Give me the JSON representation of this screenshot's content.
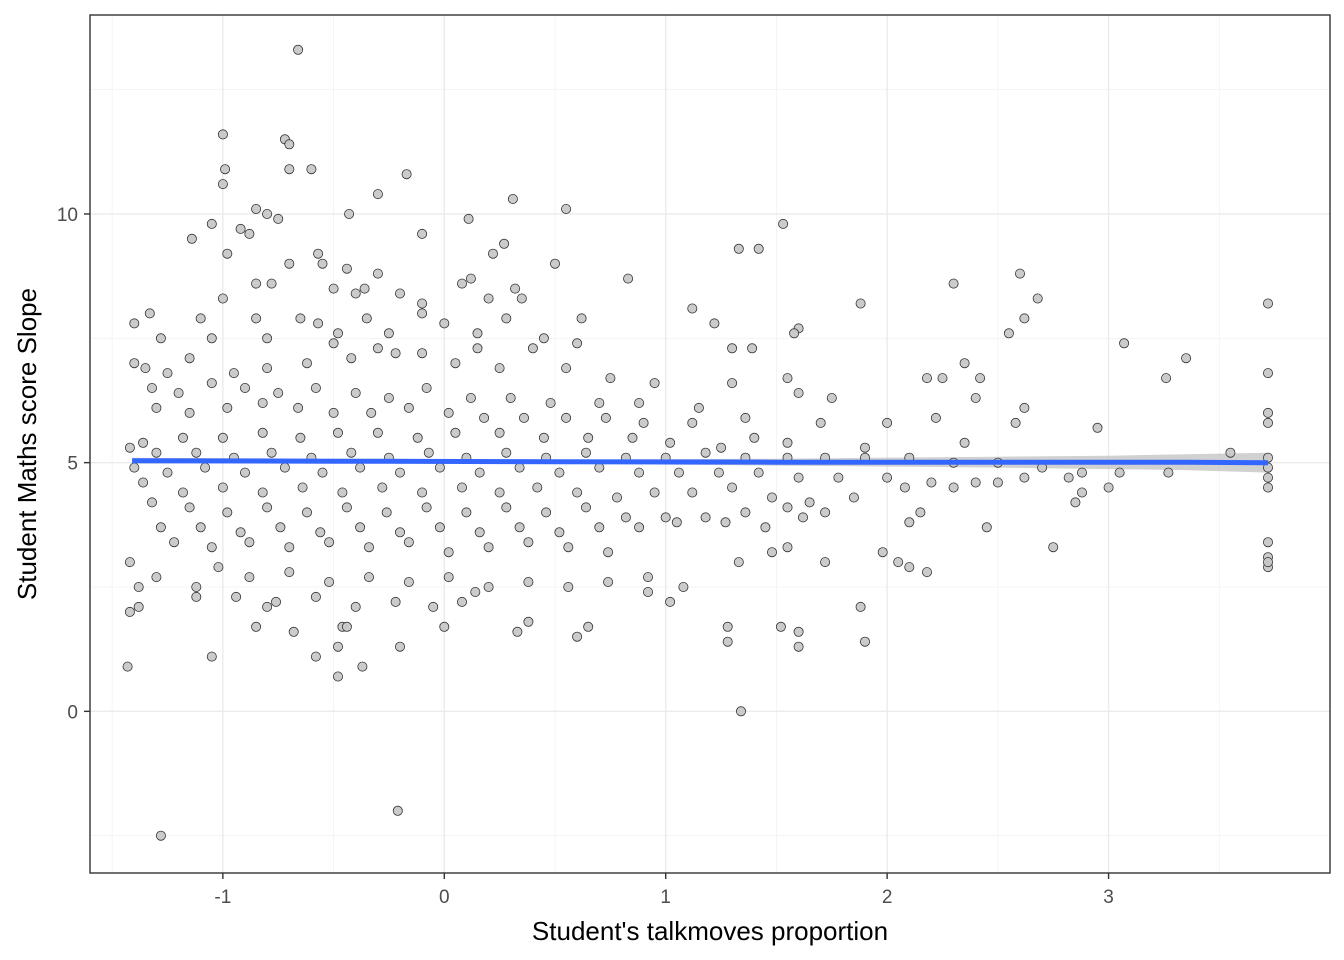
{
  "chart_data": {
    "type": "scatter",
    "xlabel": "Student's talkmoves proportion",
    "ylabel": "Student Maths score Slope",
    "xlim": [
      -1.6,
      4.0
    ],
    "ylim": [
      -3.25,
      14.0
    ],
    "x_ticks": [
      -1,
      0,
      1,
      2,
      3
    ],
    "x_tick_labels": [
      "-1",
      "0",
      "1",
      "2",
      "3"
    ],
    "y_ticks": [
      0,
      5,
      10
    ],
    "y_tick_labels": [
      "0",
      "5",
      "10"
    ],
    "grid": true,
    "colors": {
      "points": "#c8c8c8",
      "point_outline": "#333333",
      "smooth_line": "#3366ff",
      "ribbon": "#bdbdbd"
    },
    "smooth_line": {
      "x": [
        -1.41,
        -0.5,
        0.5,
        1.5,
        2.5,
        3.0,
        3.35,
        3.72
      ],
      "y": [
        5.04,
        5.03,
        5.02,
        5.01,
        5.01,
        5.01,
        5.01,
        5.0
      ],
      "se_lower": [
        4.98,
        4.99,
        4.98,
        4.94,
        4.9,
        4.87,
        4.85,
        4.8
      ],
      "se_upper": [
        5.1,
        5.08,
        5.06,
        5.08,
        5.12,
        5.14,
        5.17,
        5.2
      ]
    },
    "points": [
      [
        -0.66,
        13.3
      ],
      [
        -1.0,
        11.6
      ],
      [
        -0.72,
        11.5
      ],
      [
        -0.7,
        11.4
      ],
      [
        -0.6,
        10.9
      ],
      [
        -0.7,
        10.9
      ],
      [
        -0.99,
        10.9
      ],
      [
        -1.0,
        10.6
      ],
      [
        -0.3,
        10.4
      ],
      [
        -0.17,
        10.8
      ],
      [
        0.31,
        10.3
      ],
      [
        0.55,
        10.1
      ],
      [
        -0.85,
        10.1
      ],
      [
        -0.8,
        10.0
      ],
      [
        -0.75,
        9.9
      ],
      [
        -0.43,
        10.0
      ],
      [
        0.11,
        9.9
      ],
      [
        -1.05,
        9.8
      ],
      [
        -0.92,
        9.7
      ],
      [
        -0.88,
        9.6
      ],
      [
        -1.14,
        9.5
      ],
      [
        -0.57,
        9.2
      ],
      [
        1.53,
        9.8
      ],
      [
        1.33,
        9.3
      ],
      [
        1.42,
        9.3
      ],
      [
        0.27,
        9.4
      ],
      [
        0.22,
        9.2
      ],
      [
        -0.1,
        9.6
      ],
      [
        -0.98,
        9.2
      ],
      [
        -0.7,
        9.0
      ],
      [
        -0.55,
        9.0
      ],
      [
        -0.44,
        8.9
      ],
      [
        -0.3,
        8.8
      ],
      [
        0.5,
        9.0
      ],
      [
        0.83,
        8.7
      ],
      [
        -0.85,
        8.6
      ],
      [
        -0.78,
        8.6
      ],
      [
        0.08,
        8.6
      ],
      [
        0.12,
        8.7
      ],
      [
        -0.5,
        8.5
      ],
      [
        -0.4,
        8.4
      ],
      [
        -0.36,
        8.5
      ],
      [
        -0.2,
        8.4
      ],
      [
        -0.1,
        8.2
      ],
      [
        0.2,
        8.3
      ],
      [
        0.32,
        8.5
      ],
      [
        0.35,
        8.3
      ],
      [
        2.3,
        8.6
      ],
      [
        2.6,
        8.8
      ],
      [
        2.68,
        8.3
      ],
      [
        1.88,
        8.2
      ],
      [
        3.72,
        8.2
      ],
      [
        -1.0,
        8.3
      ],
      [
        -1.1,
        7.9
      ],
      [
        -1.33,
        8.0
      ],
      [
        -1.4,
        7.8
      ],
      [
        -0.85,
        7.9
      ],
      [
        -0.65,
        7.9
      ],
      [
        -0.57,
        7.8
      ],
      [
        -0.48,
        7.6
      ],
      [
        -0.35,
        7.9
      ],
      [
        -0.25,
        7.6
      ],
      [
        -0.1,
        8.0
      ],
      [
        0.0,
        7.8
      ],
      [
        0.15,
        7.6
      ],
      [
        0.28,
        7.9
      ],
      [
        0.45,
        7.5
      ],
      [
        0.62,
        7.9
      ],
      [
        1.12,
        8.1
      ],
      [
        1.22,
        7.8
      ],
      [
        1.6,
        7.7
      ],
      [
        1.58,
        7.6
      ],
      [
        2.55,
        7.6
      ],
      [
        2.62,
        7.9
      ],
      [
        3.07,
        7.4
      ],
      [
        3.35,
        7.1
      ],
      [
        1.3,
        7.3
      ],
      [
        1.39,
        7.3
      ],
      [
        0.6,
        7.4
      ],
      [
        0.4,
        7.3
      ],
      [
        0.15,
        7.3
      ],
      [
        -0.1,
        7.2
      ],
      [
        -0.3,
        7.3
      ],
      [
        -0.5,
        7.4
      ],
      [
        -0.8,
        7.5
      ],
      [
        -1.05,
        7.5
      ],
      [
        -1.28,
        7.5
      ],
      [
        -1.15,
        7.1
      ],
      [
        -1.4,
        7.0
      ],
      [
        -1.35,
        6.9
      ],
      [
        -1.25,
        6.8
      ],
      [
        -0.95,
        6.8
      ],
      [
        -0.8,
        6.9
      ],
      [
        -0.62,
        7.0
      ],
      [
        -0.42,
        7.1
      ],
      [
        -0.22,
        7.2
      ],
      [
        0.05,
        7.0
      ],
      [
        0.25,
        6.9
      ],
      [
        0.55,
        6.9
      ],
      [
        0.75,
        6.7
      ],
      [
        0.95,
        6.6
      ],
      [
        1.3,
        6.6
      ],
      [
        1.55,
        6.7
      ],
      [
        2.18,
        6.7
      ],
      [
        2.25,
        6.7
      ],
      [
        2.35,
        7.0
      ],
      [
        2.42,
        6.7
      ],
      [
        2.22,
        5.9
      ],
      [
        2.62,
        6.1
      ],
      [
        3.72,
        6.8
      ],
      [
        3.26,
        6.7
      ],
      [
        1.6,
        6.4
      ],
      [
        1.75,
        6.3
      ],
      [
        2.4,
        6.3
      ],
      [
        -1.32,
        6.5
      ],
      [
        -1.2,
        6.4
      ],
      [
        -1.05,
        6.6
      ],
      [
        -0.9,
        6.5
      ],
      [
        -0.75,
        6.4
      ],
      [
        -0.58,
        6.5
      ],
      [
        -0.4,
        6.4
      ],
      [
        -0.25,
        6.3
      ],
      [
        -0.08,
        6.5
      ],
      [
        0.12,
        6.3
      ],
      [
        0.3,
        6.3
      ],
      [
        0.48,
        6.2
      ],
      [
        0.7,
        6.2
      ],
      [
        0.88,
        6.2
      ],
      [
        1.15,
        6.1
      ],
      [
        1.36,
        5.9
      ],
      [
        -1.3,
        6.1
      ],
      [
        -1.15,
        6.0
      ],
      [
        -0.98,
        6.1
      ],
      [
        -0.82,
        6.2
      ],
      [
        -0.66,
        6.1
      ],
      [
        -0.5,
        6.0
      ],
      [
        -0.33,
        6.0
      ],
      [
        -0.16,
        6.1
      ],
      [
        0.02,
        6.0
      ],
      [
        0.18,
        5.9
      ],
      [
        0.36,
        5.9
      ],
      [
        0.55,
        5.9
      ],
      [
        0.73,
        5.9
      ],
      [
        0.9,
        5.8
      ],
      [
        1.12,
        5.8
      ],
      [
        1.7,
        5.8
      ],
      [
        2.0,
        5.8
      ],
      [
        2.58,
        5.8
      ],
      [
        3.72,
        6.0
      ],
      [
        3.72,
        5.8
      ],
      [
        2.95,
        5.7
      ],
      [
        2.35,
        5.4
      ],
      [
        1.9,
        5.3
      ],
      [
        1.55,
        5.4
      ],
      [
        1.4,
        5.5
      ],
      [
        1.25,
        5.3
      ],
      [
        1.02,
        5.4
      ],
      [
        0.85,
        5.5
      ],
      [
        0.65,
        5.5
      ],
      [
        0.45,
        5.5
      ],
      [
        0.25,
        5.6
      ],
      [
        0.05,
        5.6
      ],
      [
        -0.12,
        5.5
      ],
      [
        -0.3,
        5.6
      ],
      [
        -0.48,
        5.6
      ],
      [
        -0.65,
        5.5
      ],
      [
        -0.82,
        5.6
      ],
      [
        -1.0,
        5.5
      ],
      [
        -1.18,
        5.5
      ],
      [
        -1.36,
        5.4
      ],
      [
        -1.42,
        5.3
      ],
      [
        -1.3,
        5.2
      ],
      [
        -1.12,
        5.2
      ],
      [
        -0.95,
        5.1
      ],
      [
        -0.78,
        5.2
      ],
      [
        -0.6,
        5.1
      ],
      [
        -0.42,
        5.2
      ],
      [
        -0.25,
        5.1
      ],
      [
        -0.07,
        5.2
      ],
      [
        0.1,
        5.1
      ],
      [
        0.28,
        5.2
      ],
      [
        0.46,
        5.1
      ],
      [
        0.64,
        5.2
      ],
      [
        0.82,
        5.1
      ],
      [
        1.0,
        5.1
      ],
      [
        1.18,
        5.2
      ],
      [
        1.36,
        5.1
      ],
      [
        1.55,
        5.1
      ],
      [
        1.72,
        5.1
      ],
      [
        1.9,
        5.1
      ],
      [
        2.1,
        5.1
      ],
      [
        2.3,
        5.0
      ],
      [
        2.5,
        5.0
      ],
      [
        2.7,
        4.9
      ],
      [
        2.88,
        4.8
      ],
      [
        3.05,
        4.8
      ],
      [
        3.27,
        4.8
      ],
      [
        3.55,
        5.2
      ],
      [
        3.72,
        5.1
      ],
      [
        3.72,
        4.9
      ],
      [
        -1.4,
        4.9
      ],
      [
        -1.25,
        4.8
      ],
      [
        -1.08,
        4.9
      ],
      [
        -0.9,
        4.8
      ],
      [
        -0.72,
        4.9
      ],
      [
        -0.55,
        4.8
      ],
      [
        -0.38,
        4.9
      ],
      [
        -0.2,
        4.8
      ],
      [
        -0.02,
        4.9
      ],
      [
        0.16,
        4.8
      ],
      [
        0.34,
        4.9
      ],
      [
        0.52,
        4.8
      ],
      [
        0.7,
        4.9
      ],
      [
        0.88,
        4.8
      ],
      [
        1.06,
        4.8
      ],
      [
        1.24,
        4.8
      ],
      [
        1.42,
        4.8
      ],
      [
        1.6,
        4.7
      ],
      [
        1.78,
        4.7
      ],
      [
        2.0,
        4.7
      ],
      [
        2.2,
        4.6
      ],
      [
        2.4,
        4.6
      ],
      [
        2.62,
        4.7
      ],
      [
        2.82,
        4.7
      ],
      [
        3.72,
        4.7
      ],
      [
        3.72,
        4.5
      ],
      [
        3.0,
        4.5
      ],
      [
        2.88,
        4.4
      ],
      [
        2.85,
        4.2
      ],
      [
        2.5,
        4.6
      ],
      [
        2.3,
        4.5
      ],
      [
        2.08,
        4.5
      ],
      [
        1.85,
        4.3
      ],
      [
        1.65,
        4.2
      ],
      [
        1.48,
        4.3
      ],
      [
        1.3,
        4.5
      ],
      [
        1.12,
        4.4
      ],
      [
        0.95,
        4.4
      ],
      [
        0.78,
        4.3
      ],
      [
        0.6,
        4.4
      ],
      [
        0.42,
        4.5
      ],
      [
        0.25,
        4.4
      ],
      [
        0.08,
        4.5
      ],
      [
        -0.1,
        4.4
      ],
      [
        -0.28,
        4.5
      ],
      [
        -0.46,
        4.4
      ],
      [
        -0.64,
        4.5
      ],
      [
        -0.82,
        4.4
      ],
      [
        -1.0,
        4.5
      ],
      [
        -1.18,
        4.4
      ],
      [
        -1.36,
        4.6
      ],
      [
        -1.32,
        4.2
      ],
      [
        -1.15,
        4.1
      ],
      [
        -0.98,
        4.0
      ],
      [
        -0.8,
        4.1
      ],
      [
        -0.62,
        4.0
      ],
      [
        -0.44,
        4.1
      ],
      [
        -0.26,
        4.0
      ],
      [
        -0.08,
        4.1
      ],
      [
        0.1,
        4.0
      ],
      [
        0.28,
        4.1
      ],
      [
        0.46,
        4.0
      ],
      [
        0.64,
        4.1
      ],
      [
        0.82,
        3.9
      ],
      [
        1.0,
        3.9
      ],
      [
        1.18,
        3.9
      ],
      [
        1.36,
        4.0
      ],
      [
        1.55,
        4.1
      ],
      [
        1.72,
        4.0
      ],
      [
        2.15,
        4.0
      ],
      [
        2.45,
        3.7
      ],
      [
        2.1,
        3.8
      ],
      [
        1.62,
        3.9
      ],
      [
        1.45,
        3.7
      ],
      [
        1.27,
        3.8
      ],
      [
        1.05,
        3.8
      ],
      [
        0.88,
        3.7
      ],
      [
        0.7,
        3.7
      ],
      [
        0.52,
        3.6
      ],
      [
        0.34,
        3.7
      ],
      [
        0.16,
        3.6
      ],
      [
        -0.02,
        3.7
      ],
      [
        -0.2,
        3.6
      ],
      [
        -0.38,
        3.7
      ],
      [
        -0.56,
        3.6
      ],
      [
        -0.74,
        3.7
      ],
      [
        -0.92,
        3.6
      ],
      [
        -1.1,
        3.7
      ],
      [
        -1.28,
        3.7
      ],
      [
        -1.22,
        3.4
      ],
      [
        -1.05,
        3.3
      ],
      [
        -0.88,
        3.4
      ],
      [
        -0.7,
        3.3
      ],
      [
        -0.52,
        3.4
      ],
      [
        -0.34,
        3.3
      ],
      [
        -0.16,
        3.4
      ],
      [
        0.02,
        3.2
      ],
      [
        0.2,
        3.3
      ],
      [
        0.38,
        3.4
      ],
      [
        0.56,
        3.3
      ],
      [
        0.74,
        3.2
      ],
      [
        1.33,
        3.0
      ],
      [
        1.48,
        3.2
      ],
      [
        1.55,
        3.3
      ],
      [
        1.72,
        3.0
      ],
      [
        2.1,
        2.9
      ],
      [
        2.18,
        2.8
      ],
      [
        1.98,
        3.2
      ],
      [
        2.05,
        3.0
      ],
      [
        2.75,
        3.3
      ],
      [
        3.72,
        3.4
      ],
      [
        3.72,
        3.1
      ],
      [
        3.72,
        2.9
      ],
      [
        3.72,
        3.0
      ],
      [
        -1.42,
        3.0
      ],
      [
        -1.38,
        2.5
      ],
      [
        -1.3,
        2.7
      ],
      [
        -1.12,
        2.5
      ],
      [
        -1.02,
        2.9
      ],
      [
        -0.88,
        2.7
      ],
      [
        -0.7,
        2.8
      ],
      [
        -0.52,
        2.6
      ],
      [
        -0.34,
        2.7
      ],
      [
        -0.16,
        2.6
      ],
      [
        0.02,
        2.7
      ],
      [
        0.2,
        2.5
      ],
      [
        0.38,
        2.6
      ],
      [
        0.56,
        2.5
      ],
      [
        0.74,
        2.6
      ],
      [
        0.92,
        2.7
      ],
      [
        1.08,
        2.5
      ],
      [
        1.02,
        2.2
      ],
      [
        0.92,
        2.4
      ],
      [
        0.14,
        2.4
      ],
      [
        0.08,
        2.2
      ],
      [
        -0.05,
        2.1
      ],
      [
        -0.22,
        2.2
      ],
      [
        -0.4,
        2.1
      ],
      [
        -0.58,
        2.3
      ],
      [
        -0.76,
        2.2
      ],
      [
        -0.94,
        2.3
      ],
      [
        -1.12,
        2.3
      ],
      [
        -1.38,
        2.1
      ],
      [
        -1.42,
        2.0
      ],
      [
        -0.8,
        2.1
      ],
      [
        -0.85,
        1.7
      ],
      [
        -0.68,
        1.6
      ],
      [
        -0.46,
        1.7
      ],
      [
        -0.44,
        1.7
      ],
      [
        0.0,
        1.7
      ],
      [
        0.38,
        1.8
      ],
      [
        0.33,
        1.6
      ],
      [
        0.65,
        1.7
      ],
      [
        0.6,
        1.5
      ],
      [
        1.28,
        1.7
      ],
      [
        1.28,
        1.4
      ],
      [
        1.52,
        1.7
      ],
      [
        1.6,
        1.6
      ],
      [
        1.6,
        1.3
      ],
      [
        1.88,
        2.1
      ],
      [
        1.9,
        1.4
      ],
      [
        -0.58,
        1.1
      ],
      [
        -0.48,
        1.3
      ],
      [
        -0.37,
        0.9
      ],
      [
        -0.2,
        1.3
      ],
      [
        -1.05,
        1.1
      ],
      [
        -1.43,
        0.9
      ],
      [
        -0.48,
        0.7
      ],
      [
        1.34,
        0.0
      ],
      [
        -0.21,
        -2.0
      ],
      [
        -1.28,
        -2.5
      ]
    ]
  }
}
